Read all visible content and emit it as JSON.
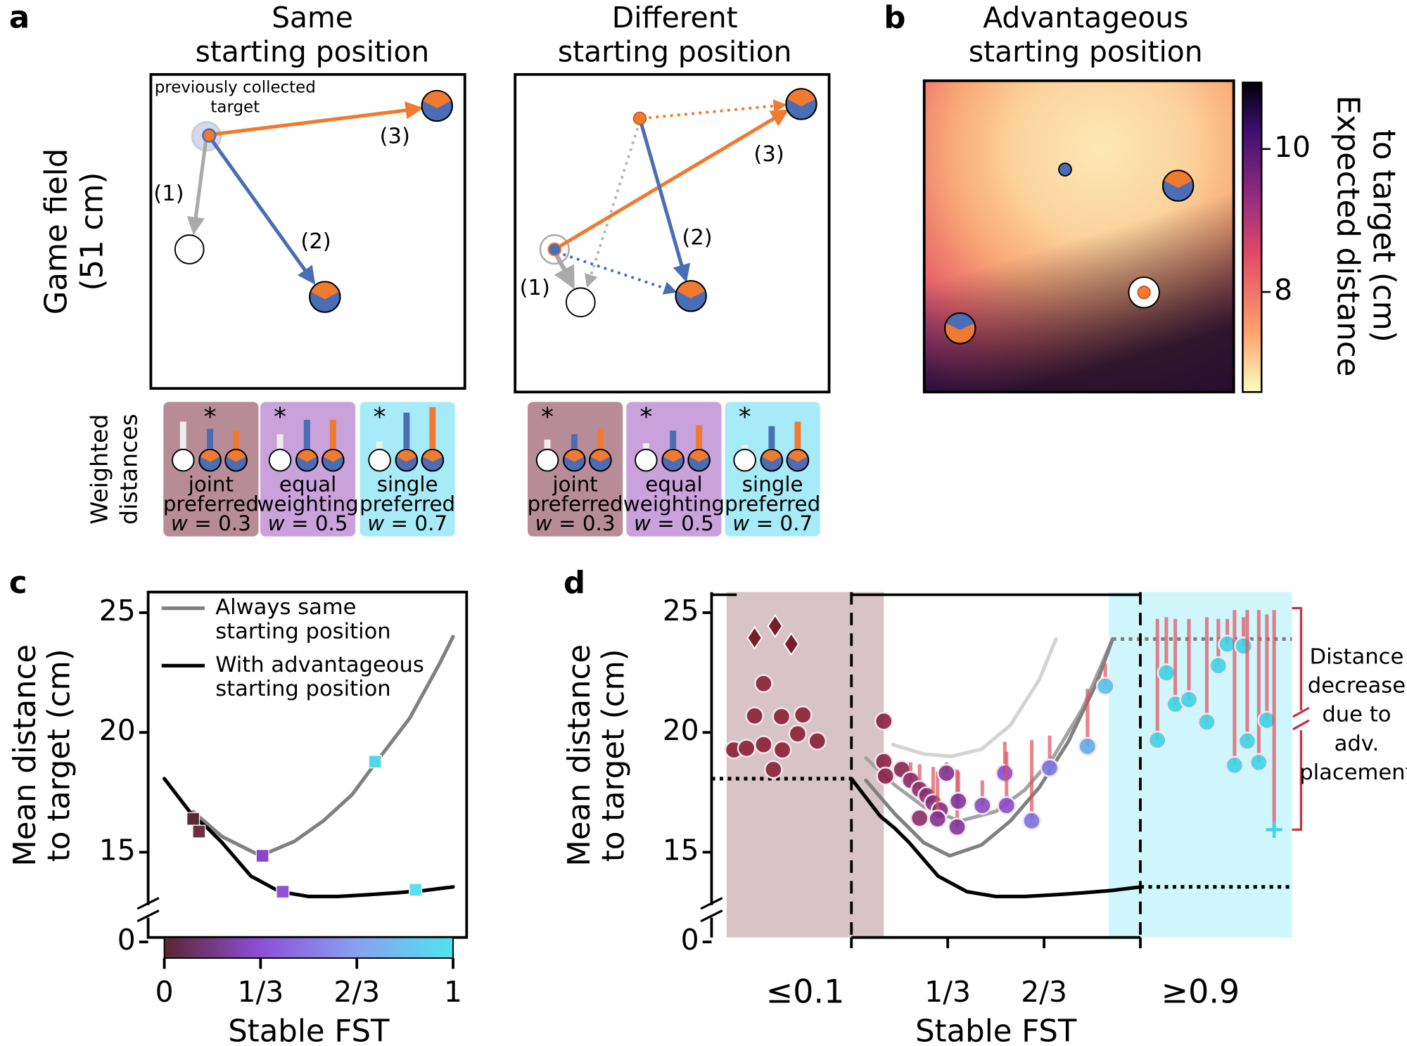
{
  "panel_a": {
    "label": "a",
    "titles": [
      [
        "Same",
        "starting position"
      ],
      [
        "Different",
        "starting position"
      ]
    ],
    "ylabel": [
      "Game field",
      "(51 cm)"
    ],
    "annotation": [
      "previously collected",
      "target"
    ],
    "step_labels": [
      [
        "(1)",
        "(2)",
        "(3)"
      ],
      [
        "(1)",
        "(2)",
        "(3)"
      ]
    ],
    "weights_label": [
      "Weighted",
      "distances"
    ],
    "weightings": [
      [
        {
          "lines": [
            "joint",
            "preferred"
          ],
          "w": [
            "w",
            " = 0.3"
          ],
          "star": "*",
          "best": 1,
          "color": "#b78c97"
        },
        {
          "lines": [
            "equal",
            "weighting"
          ],
          "w": [
            "w",
            " = 0.5"
          ],
          "star": "*",
          "best": 0,
          "color": "#c9a2dc"
        },
        {
          "lines": [
            "single",
            "preferred"
          ],
          "w": [
            "w",
            " = 0.7"
          ],
          "star": "*",
          "best": 0,
          "color": "#a7ebf8"
        }
      ],
      [
        {
          "lines": [
            "joint",
            "preferred"
          ],
          "w": [
            "w",
            " = 0.3"
          ],
          "star": "*",
          "best": 0,
          "color": "#b78c97"
        },
        {
          "lines": [
            "equal",
            "weighting"
          ],
          "w": [
            "w",
            " = 0.5"
          ],
          "star": "*",
          "best": 0,
          "color": "#c9a2dc"
        },
        {
          "lines": [
            "single",
            "preferred"
          ],
          "w": [
            "w",
            " = 0.7"
          ],
          "star": "*",
          "best": 0,
          "color": "#a7ebf8"
        }
      ]
    ]
  },
  "panel_b": {
    "label": "b",
    "title": [
      "Advantageous",
      "starting position"
    ],
    "colorbar_label": [
      "Expected distance",
      "to target (cm)"
    ],
    "clim": [
      6.6,
      10.93
    ],
    "cticks": [
      8,
      10
    ]
  },
  "chart_data": [
    {
      "label": "c",
      "type": "line",
      "ylabel": [
        "Mean distance",
        "to target (cm)"
      ],
      "xlabel": "Stable FST",
      "xlim": [
        -0.056,
        1.047
      ],
      "xticks": [
        0,
        {
          "value": 0.3333,
          "label": "1/3"
        },
        {
          "value": 0.6667,
          "label": "2/3"
        },
        1
      ],
      "ylim": [
        11.44,
        25.86
      ],
      "yticks": [
        0,
        15,
        20,
        25
      ],
      "axis_break": true,
      "legend": "upper left",
      "colorbar_colors": [
        "#5a2630",
        "#8c4fd8",
        "#8aa0f0",
        "#4fe3f0"
      ],
      "series": [
        {
          "name": [
            "Always same",
            "starting position"
          ],
          "color": "#808080",
          "x": [
            0.1,
            0.2,
            0.333,
            0.45,
            0.55,
            0.65,
            0.73,
            0.85,
            0.95,
            1.0
          ],
          "values": [
            16.69,
            15.65,
            14.85,
            15.45,
            16.3,
            17.4,
            18.7,
            20.6,
            22.8,
            24.0
          ]
        },
        {
          "name": [
            "With advantageous",
            "starting position"
          ],
          "color": "#000000",
          "x": [
            0,
            0.1,
            0.15,
            0.2,
            0.3,
            0.4,
            0.5,
            0.6,
            0.7,
            0.8,
            0.9,
            1.0
          ],
          "values": [
            18.07,
            16.5,
            16.0,
            15.4,
            14.0,
            13.35,
            13.15,
            13.15,
            13.22,
            13.3,
            13.4,
            13.55
          ]
        }
      ],
      "markers": {
        "x": [
          0.1,
          0.12,
          0.34,
          0.41,
          0.73,
          0.87
        ],
        "values": [
          16.39,
          15.86,
          14.85,
          13.35,
          18.78,
          13.43
        ],
        "colors": [
          "#5c2a36",
          "#6b2f3e",
          "#8a45c8",
          "#9250d8",
          "#52d6e8",
          "#5ae0ee"
        ]
      }
    },
    {
      "label": "d",
      "type": "line",
      "ylabel": [
        "Mean distance",
        "to target (cm)"
      ],
      "xlabel": "Stable FST",
      "xlim": [
        -0.484,
        1.525
      ],
      "xticks": [
        {
          "value": 0.3333,
          "label": "1/3"
        },
        {
          "value": 0.6667,
          "label": "2/3"
        }
      ],
      "ylim": [
        11.44,
        25.86
      ],
      "yticks": [
        0,
        15,
        20,
        25
      ],
      "axis_break": true,
      "dividers": [
        0,
        1
      ],
      "regions": [
        {
          "label": "≤0.1",
          "color": "#d8c4c6",
          "label_color": "#7a2a3a",
          "xlim": [
            -0.432,
            0.112
          ]
        },
        {
          "label": "≥0.9",
          "color": "#cff6fb",
          "label_color": "#40c8dc",
          "xlim": [
            0.891,
            1.525
          ]
        }
      ],
      "ref_lines": [
        {
          "value": 18.07,
          "xlim": [
            -0.484,
            0
          ],
          "color": "#000000"
        },
        {
          "value": 13.55,
          "xlim": [
            1,
            1.525
          ],
          "color": "#000000"
        },
        {
          "value": 23.9,
          "xlim": [
            0.904,
            1.525
          ],
          "color": "#808080"
        }
      ],
      "series": [
        {
          "color": "#d4d4d4",
          "x": [
            0.143,
            0.25,
            0.345,
            0.45,
            0.55,
            0.65,
            0.708
          ],
          "values": [
            19.49,
            19.1,
            19.0,
            19.3,
            20.3,
            22.2,
            23.9
          ]
        },
        {
          "color": "#a3a3a3",
          "x": [
            0.05,
            0.15,
            0.25,
            0.375,
            0.5,
            0.6,
            0.7,
            0.8,
            0.904
          ],
          "values": [
            18.93,
            17.8,
            16.9,
            16.3,
            16.7,
            17.6,
            19.0,
            21.0,
            23.9
          ]
        },
        {
          "color": "#808080",
          "x": [
            0.05,
            0.15,
            0.25,
            0.34,
            0.45,
            0.55,
            0.65,
            0.75,
            0.85,
            0.904
          ],
          "values": [
            18.0,
            16.6,
            15.4,
            14.85,
            15.3,
            16.3,
            17.7,
            19.6,
            22.1,
            23.9
          ]
        },
        {
          "color": "#000000",
          "x": [
            0,
            0.1,
            0.15,
            0.2,
            0.3,
            0.4,
            0.5,
            0.6,
            0.7,
            0.8,
            0.9,
            1.0
          ],
          "values": [
            18.07,
            16.5,
            16.0,
            15.4,
            14.0,
            13.35,
            13.15,
            13.15,
            13.22,
            13.3,
            13.4,
            13.55
          ]
        }
      ],
      "points": [
        {
          "marker": "diamond",
          "color": "#7a1c30",
          "x": [
            -0.335,
            -0.264,
            -0.208
          ],
          "values": [
            23.95,
            24.44,
            23.69
          ]
        },
        {
          "marker": "circle",
          "color": "#8a2038",
          "x": [
            -0.304,
            -0.335,
            -0.242,
            -0.168,
            -0.407,
            -0.363,
            -0.304,
            -0.239,
            -0.186,
            -0.118,
            -0.27
          ],
          "values": [
            22.04,
            20.69,
            20.66,
            20.73,
            19.27,
            19.34,
            19.49,
            19.27,
            19.94,
            19.64,
            18.45
          ]
        },
        {
          "marker": "circle",
          "colors": [
            "#8a2040",
            "#8a2040",
            "#8a2046",
            "#8a2450",
            "#8a2860",
            "#8a2a66",
            "#882c70",
            "#862e78",
            "#842f80",
            "#8a2a66",
            "#82308a",
            "#80308a",
            "#7e3496",
            "#7e3496",
            "#8a48c0",
            "#8a4ac8",
            "#8a4ac8",
            "#7a70e0",
            "#7a78e0",
            "#60a8e8",
            "#58c0ea"
          ],
          "x": [
            0.112,
            0.112,
            0.118,
            0.174,
            0.205,
            0.236,
            0.261,
            0.283,
            0.307,
            0.236,
            0.298,
            0.329,
            0.366,
            0.37,
            0.453,
            0.531,
            0.537,
            0.624,
            0.686,
            0.817,
            0.879
          ],
          "values": [
            20.47,
            18.78,
            18.18,
            18.45,
            18.0,
            17.62,
            17.36,
            17.06,
            16.76,
            16.42,
            16.39,
            18.3,
            16.05,
            17.13,
            16.95,
            18.3,
            16.95,
            16.31,
            18.52,
            19.42,
            21.93
          ],
          "upper": [
            null,
            null,
            null,
            null,
            18.75,
            18.67,
            null,
            18.56,
            null,
            null,
            18.37,
            18.75,
            18.45,
            18.37,
            18.0,
            19.61,
            19.19,
            19.68,
            19.87,
            21.82,
            22.87
          ]
        },
        {
          "marker": "circle",
          "color": "#3fd3e6",
          "x": [
            1.059,
            1.09,
            1.121,
            1.168,
            1.23,
            1.27,
            1.301,
            1.326,
            1.357,
            1.37,
            1.41,
            1.438
          ],
          "values": [
            19.68,
            22.49,
            21.18,
            21.37,
            20.43,
            22.79,
            23.69,
            18.63,
            23.61,
            19.64,
            18.75,
            20.51
          ],
          "upper": [
            24.74,
            24.81,
            24.74,
            24.74,
            24.81,
            24.74,
            24.74,
            25.11,
            24.81,
            25.11,
            25.11,
            24.93
          ]
        },
        {
          "marker": "plus",
          "color": "#3fd3e6",
          "x": [
            1.463
          ],
          "values": [
            15.94
          ],
          "upper": [
            25.11
          ]
        }
      ],
      "bracket": [
        15.94,
        25.19
      ],
      "annotation": [
        "Distance",
        "decrease",
        "due to",
        "adv.",
        "placement"
      ],
      "annotation_color": "#c8303f"
    }
  ]
}
